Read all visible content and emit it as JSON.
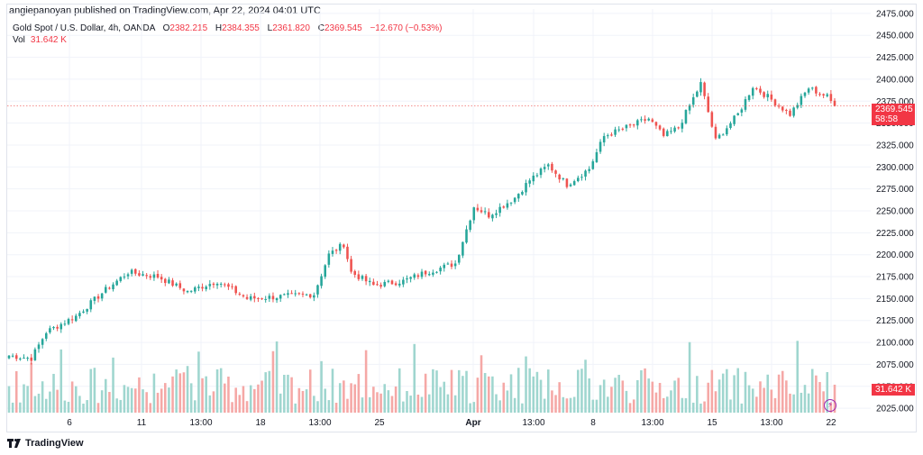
{
  "header": {
    "publisher": "angiepanoyan published on TradingView.com, Apr 22, 2024 04:01 UTC",
    "symbol": "Gold Spot / U.S. Dollar, 4h, OANDA",
    "open_label": "O",
    "open": "2382.215",
    "high_label": "H",
    "high": "2384.355",
    "low_label": "L",
    "low": "2361.820",
    "close_label": "C",
    "close": "2369.545",
    "change": "−12.670 (−0.53%)",
    "vol_label": "Vol",
    "vol_value": "31.642 K"
  },
  "last_price_tag": {
    "price": "2369.545",
    "countdown": "58:58"
  },
  "volume_tag": "31.642 K",
  "footer": {
    "brand": "TradingView"
  },
  "colors": {
    "up": "#26a69a",
    "down": "#ef5350",
    "vol_up": "#9fd6cf",
    "vol_down": "#f5a8a6",
    "tag": "#f23645",
    "grid": "#f0f3fa"
  },
  "chart_data": {
    "type": "candlestick",
    "instrument": "Gold Spot / U.S. Dollar",
    "interval": "4h",
    "y_axis": {
      "position": "right",
      "ticks": [
        2025,
        2050,
        2075,
        2100,
        2125,
        2150,
        2175,
        2200,
        2225,
        2250,
        2275,
        2300,
        2325,
        2350,
        2375,
        2400,
        2425,
        2450,
        2475
      ],
      "tick_labels": [
        "2025.000",
        "2050.000",
        "2075.000",
        "2100.000",
        "2125.000",
        "2150.000",
        "2175.000",
        "2200.000",
        "2225.000",
        "2250.000",
        "2275.000",
        "2300.000",
        "2325.000",
        "2350.000",
        "2375.000",
        "2400.000",
        "2425.000",
        "2450.000",
        "2475.000"
      ],
      "range": [
        2020,
        2480
      ]
    },
    "x_axis": {
      "ticks": [
        "6",
        "11",
        "13:00",
        "18",
        "13:00",
        "25",
        "Apr",
        "13:00",
        "8",
        "13:00",
        "15",
        "13:00",
        "22"
      ]
    },
    "price_anchors": [
      {
        "bar": 0,
        "close": 2085
      },
      {
        "bar": 6,
        "close": 2082
      },
      {
        "bar": 10,
        "close": 2112
      },
      {
        "bar": 18,
        "close": 2130
      },
      {
        "bar": 26,
        "close": 2160
      },
      {
        "bar": 32,
        "close": 2180
      },
      {
        "bar": 40,
        "close": 2175
      },
      {
        "bar": 48,
        "close": 2158
      },
      {
        "bar": 56,
        "close": 2170
      },
      {
        "bar": 64,
        "close": 2150
      },
      {
        "bar": 72,
        "close": 2152
      },
      {
        "bar": 82,
        "close": 2155
      },
      {
        "bar": 86,
        "close": 2200
      },
      {
        "bar": 90,
        "close": 2212
      },
      {
        "bar": 92,
        "close": 2180
      },
      {
        "bar": 98,
        "close": 2165
      },
      {
        "bar": 106,
        "close": 2170
      },
      {
        "bar": 112,
        "close": 2180
      },
      {
        "bar": 120,
        "close": 2190
      },
      {
        "bar": 125,
        "close": 2255
      },
      {
        "bar": 129,
        "close": 2245
      },
      {
        "bar": 136,
        "close": 2265
      },
      {
        "bar": 140,
        "close": 2285
      },
      {
        "bar": 145,
        "close": 2302
      },
      {
        "bar": 150,
        "close": 2280
      },
      {
        "bar": 156,
        "close": 2298
      },
      {
        "bar": 160,
        "close": 2335
      },
      {
        "bar": 166,
        "close": 2345
      },
      {
        "bar": 172,
        "close": 2355
      },
      {
        "bar": 176,
        "close": 2335
      },
      {
        "bar": 180,
        "close": 2345
      },
      {
        "bar": 186,
        "close": 2395
      },
      {
        "bar": 190,
        "close": 2330
      },
      {
        "bar": 196,
        "close": 2360
      },
      {
        "bar": 200,
        "close": 2392
      },
      {
        "bar": 204,
        "close": 2380
      },
      {
        "bar": 210,
        "close": 2360
      },
      {
        "bar": 215,
        "close": 2390
      },
      {
        "bar": 220,
        "close": 2380
      },
      {
        "bar": 222,
        "close": 2369.545
      }
    ],
    "bar_count": 223,
    "last_close": 2369.545
  }
}
